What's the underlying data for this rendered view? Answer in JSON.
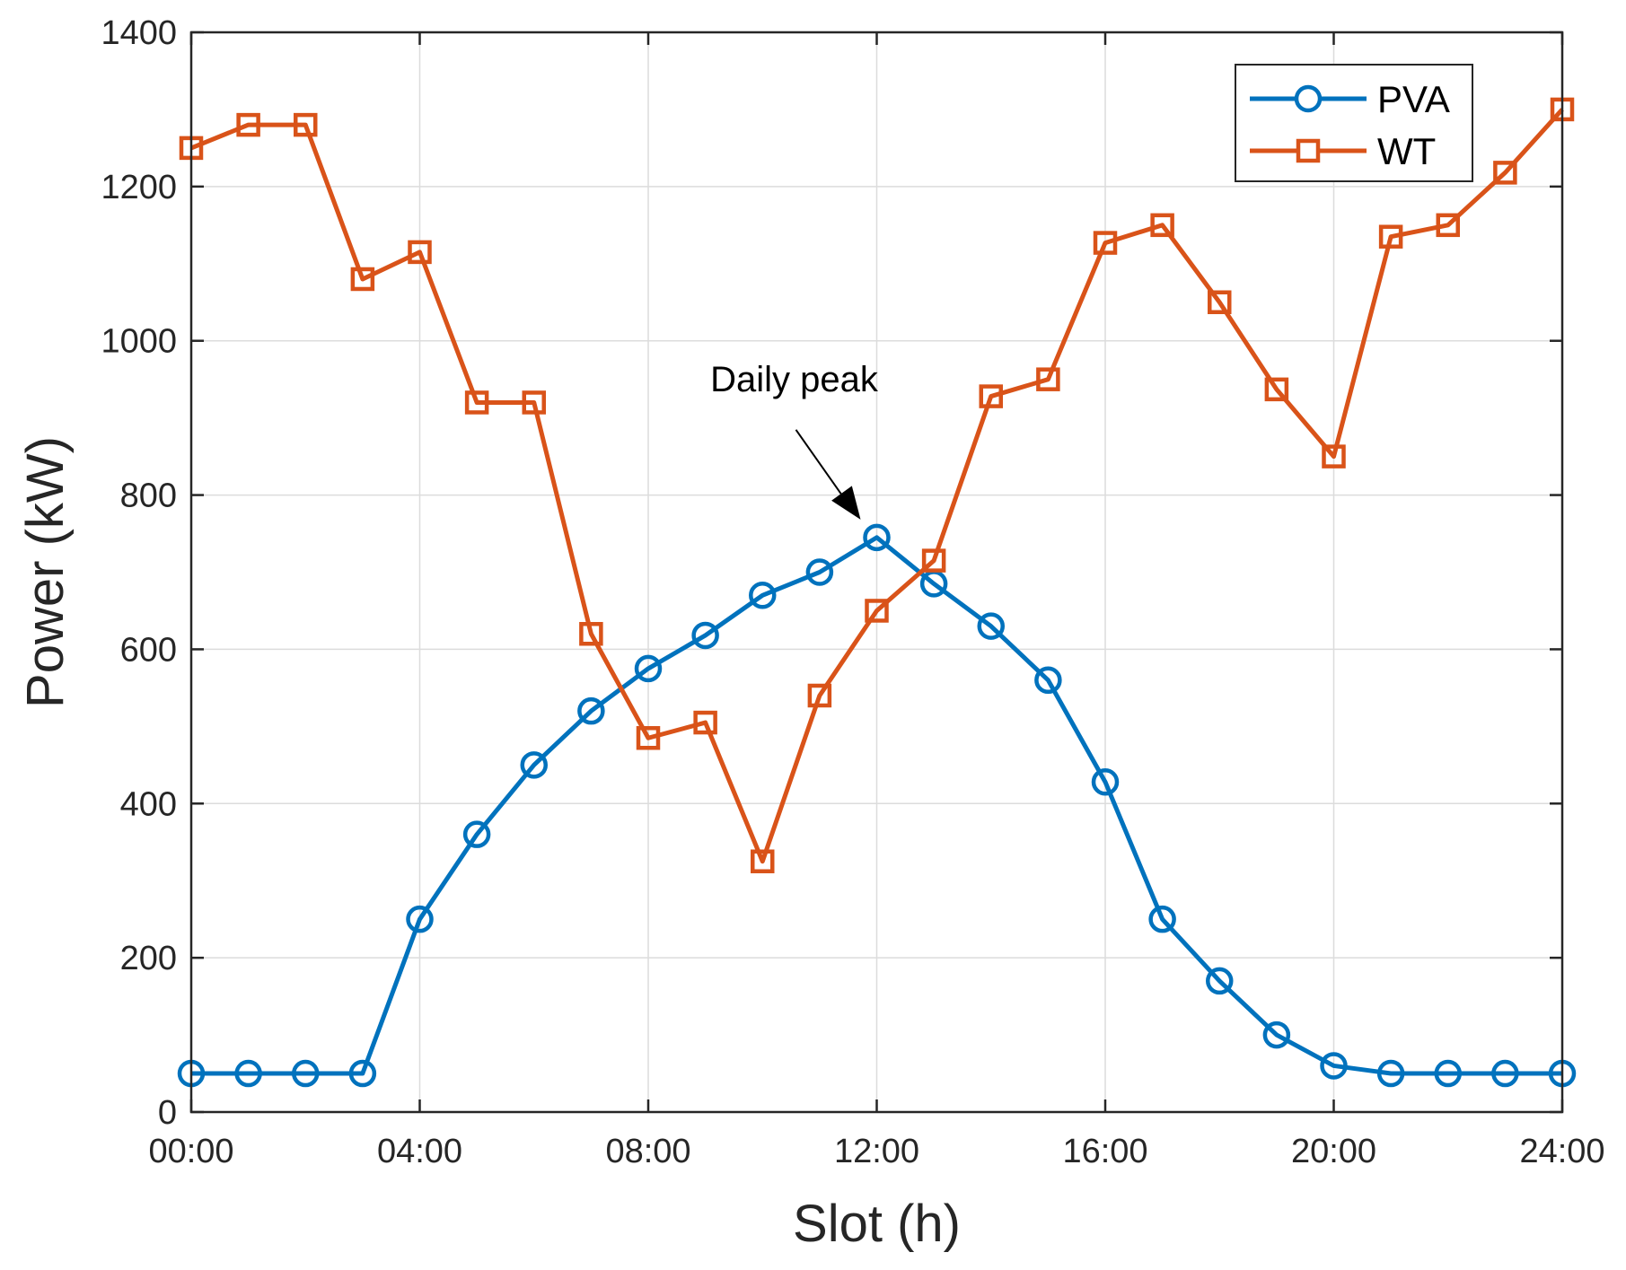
{
  "chart_data": {
    "type": "line",
    "title": "",
    "xlabel": "Slot (h)",
    "ylabel": "Power (kW)",
    "xlim": [
      0,
      24
    ],
    "ylim": [
      0,
      1400
    ],
    "grid": true,
    "legend_position": "top-right",
    "x": [
      0,
      1,
      2,
      3,
      4,
      5,
      6,
      7,
      8,
      9,
      10,
      11,
      12,
      13,
      14,
      15,
      16,
      17,
      18,
      19,
      20,
      21,
      22,
      23,
      24
    ],
    "x_ticks": [
      0,
      4,
      8,
      12,
      16,
      20,
      24
    ],
    "x_tick_labels": [
      "00:00",
      "04:00",
      "08:00",
      "12:00",
      "16:00",
      "20:00",
      "24:00"
    ],
    "y_ticks": [
      0,
      200,
      400,
      600,
      800,
      1000,
      1200,
      1400
    ],
    "y_tick_labels": [
      "0",
      "200",
      "400",
      "600",
      "800",
      "1000",
      "1200",
      "1400"
    ],
    "series": [
      {
        "name": "PVA",
        "color": "#0072BD",
        "marker": "circle",
        "values": [
          50,
          50,
          50,
          50,
          250,
          360,
          450,
          520,
          575,
          618,
          670,
          700,
          745,
          685,
          630,
          560,
          428,
          250,
          170,
          100,
          60,
          50,
          50,
          50,
          50
        ]
      },
      {
        "name": "WT",
        "color": "#D95319",
        "marker": "square",
        "values": [
          1250,
          1280,
          1280,
          1080,
          1115,
          920,
          920,
          620,
          485,
          505,
          325,
          540,
          650,
          715,
          928,
          950,
          1127,
          1150,
          1050,
          937,
          850,
          1135,
          1150,
          1218,
          1300
        ]
      }
    ],
    "annotations": [
      {
        "text": "Daily peak",
        "target_x": 12,
        "target_y": 745
      }
    ]
  }
}
